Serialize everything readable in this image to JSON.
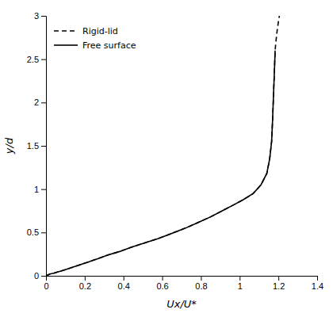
{
  "chart_data": {
    "type": "line",
    "xlabel": "Ux/U*",
    "ylabel": "y/d",
    "xlim": [
      0,
      1.4
    ],
    "ylim": [
      0,
      3
    ],
    "xticks": [
      0,
      0.2,
      0.4,
      0.6,
      0.8,
      1.0,
      1.2,
      1.4
    ],
    "yticks": [
      0,
      0.5,
      1.0,
      1.5,
      2.0,
      2.5,
      3.0
    ],
    "grid": false,
    "legend": "upper left",
    "series": [
      {
        "name": "Rigid-lid",
        "color": "#000000",
        "line_style": "dashed",
        "x": [
          0.0,
          0.01,
          0.02,
          0.04,
          0.07,
          0.1,
          0.14,
          0.18,
          0.22,
          0.27,
          0.32,
          0.38,
          0.44,
          0.51,
          0.58,
          0.65,
          0.72,
          0.79,
          0.85,
          0.91,
          0.97,
          1.02,
          1.07,
          1.11,
          1.14,
          1.155,
          1.165,
          1.17,
          1.175,
          1.18,
          1.183,
          1.188,
          1.193,
          1.198,
          1.202,
          1.205
        ],
        "values": [
          0.0,
          0.01,
          0.02,
          0.03,
          0.05,
          0.07,
          0.1,
          0.13,
          0.16,
          0.2,
          0.24,
          0.28,
          0.33,
          0.38,
          0.43,
          0.49,
          0.55,
          0.62,
          0.68,
          0.75,
          0.82,
          0.88,
          0.95,
          1.05,
          1.18,
          1.35,
          1.55,
          1.8,
          2.1,
          2.4,
          2.6,
          2.72,
          2.82,
          2.9,
          2.96,
          3.0
        ]
      },
      {
        "name": "Free surface",
        "color": "#000000",
        "line_style": "solid",
        "x": [
          0.0,
          0.01,
          0.02,
          0.04,
          0.07,
          0.1,
          0.14,
          0.18,
          0.22,
          0.27,
          0.32,
          0.38,
          0.44,
          0.51,
          0.58,
          0.65,
          0.72,
          0.79,
          0.85,
          0.91,
          0.97,
          1.02,
          1.07,
          1.11,
          1.14,
          1.155,
          1.165,
          1.17,
          1.175,
          1.18,
          1.183
        ],
        "values": [
          0.0,
          0.01,
          0.02,
          0.03,
          0.05,
          0.07,
          0.1,
          0.13,
          0.16,
          0.2,
          0.24,
          0.28,
          0.33,
          0.38,
          0.43,
          0.49,
          0.55,
          0.62,
          0.68,
          0.75,
          0.82,
          0.88,
          0.95,
          1.05,
          1.18,
          1.35,
          1.55,
          1.8,
          2.1,
          2.4,
          2.6
        ]
      }
    ]
  }
}
